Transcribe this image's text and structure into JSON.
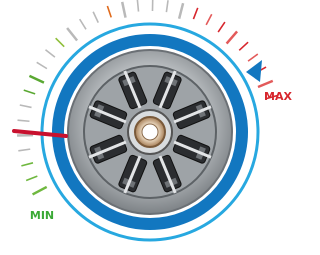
{
  "labels": {
    "min": "MIN",
    "max": "MAX"
  }
}
